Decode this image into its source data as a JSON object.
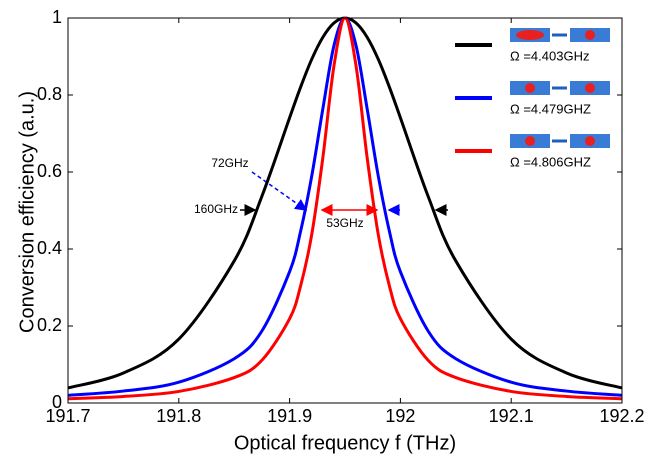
{
  "chart_data": {
    "type": "line",
    "xlabel": "Optical frequency f (THz)",
    "ylabel": "Conversion efficiency  (a.u.)",
    "x": [
      191.7,
      191.75,
      191.8,
      191.85,
      191.875,
      191.9,
      191.91,
      191.92,
      191.93,
      191.94,
      191.95,
      191.96,
      191.97,
      191.98,
      191.99,
      192.0,
      192.025,
      192.05,
      192.1,
      192.15,
      192.2
    ],
    "series": [
      {
        "name": "Ω =4.403GHz",
        "color": "#000000",
        "values": [
          0.039,
          0.078,
          0.166,
          0.369,
          0.537,
          0.741,
          0.821,
          0.893,
          0.95,
          0.987,
          1,
          0.987,
          0.95,
          0.893,
          0.821,
          0.741,
          0.537,
          0.369,
          0.166,
          0.078,
          0.039
        ]
      },
      {
        "name": "Ω =4.479GHZ",
        "color": "#0000ff",
        "values": [
          0.02,
          0.031,
          0.054,
          0.115,
          0.187,
          0.341,
          0.447,
          0.59,
          0.764,
          0.928,
          1,
          0.928,
          0.764,
          0.59,
          0.447,
          0.341,
          0.187,
          0.115,
          0.054,
          0.031,
          0.02
        ]
      },
      {
        "name": "Ω =4.806GHZ",
        "color": "#ff0000",
        "values": [
          0.011,
          0.017,
          0.03,
          0.066,
          0.111,
          0.219,
          0.305,
          0.438,
          0.637,
          0.875,
          1,
          0.875,
          0.637,
          0.438,
          0.305,
          0.219,
          0.111,
          0.066,
          0.03,
          0.017,
          0.011
        ]
      }
    ],
    "annotations": [
      "160GHz",
      "72GHz",
      "53GHz"
    ],
    "xlim": [
      191.7,
      192.2
    ],
    "xticks": [
      191.7,
      191.8,
      191.9,
      192,
      192.1,
      192.2
    ],
    "ylim": [
      0,
      1
    ],
    "yticks": [
      0,
      0.2,
      0.4,
      0.6,
      0.8,
      1
    ]
  }
}
